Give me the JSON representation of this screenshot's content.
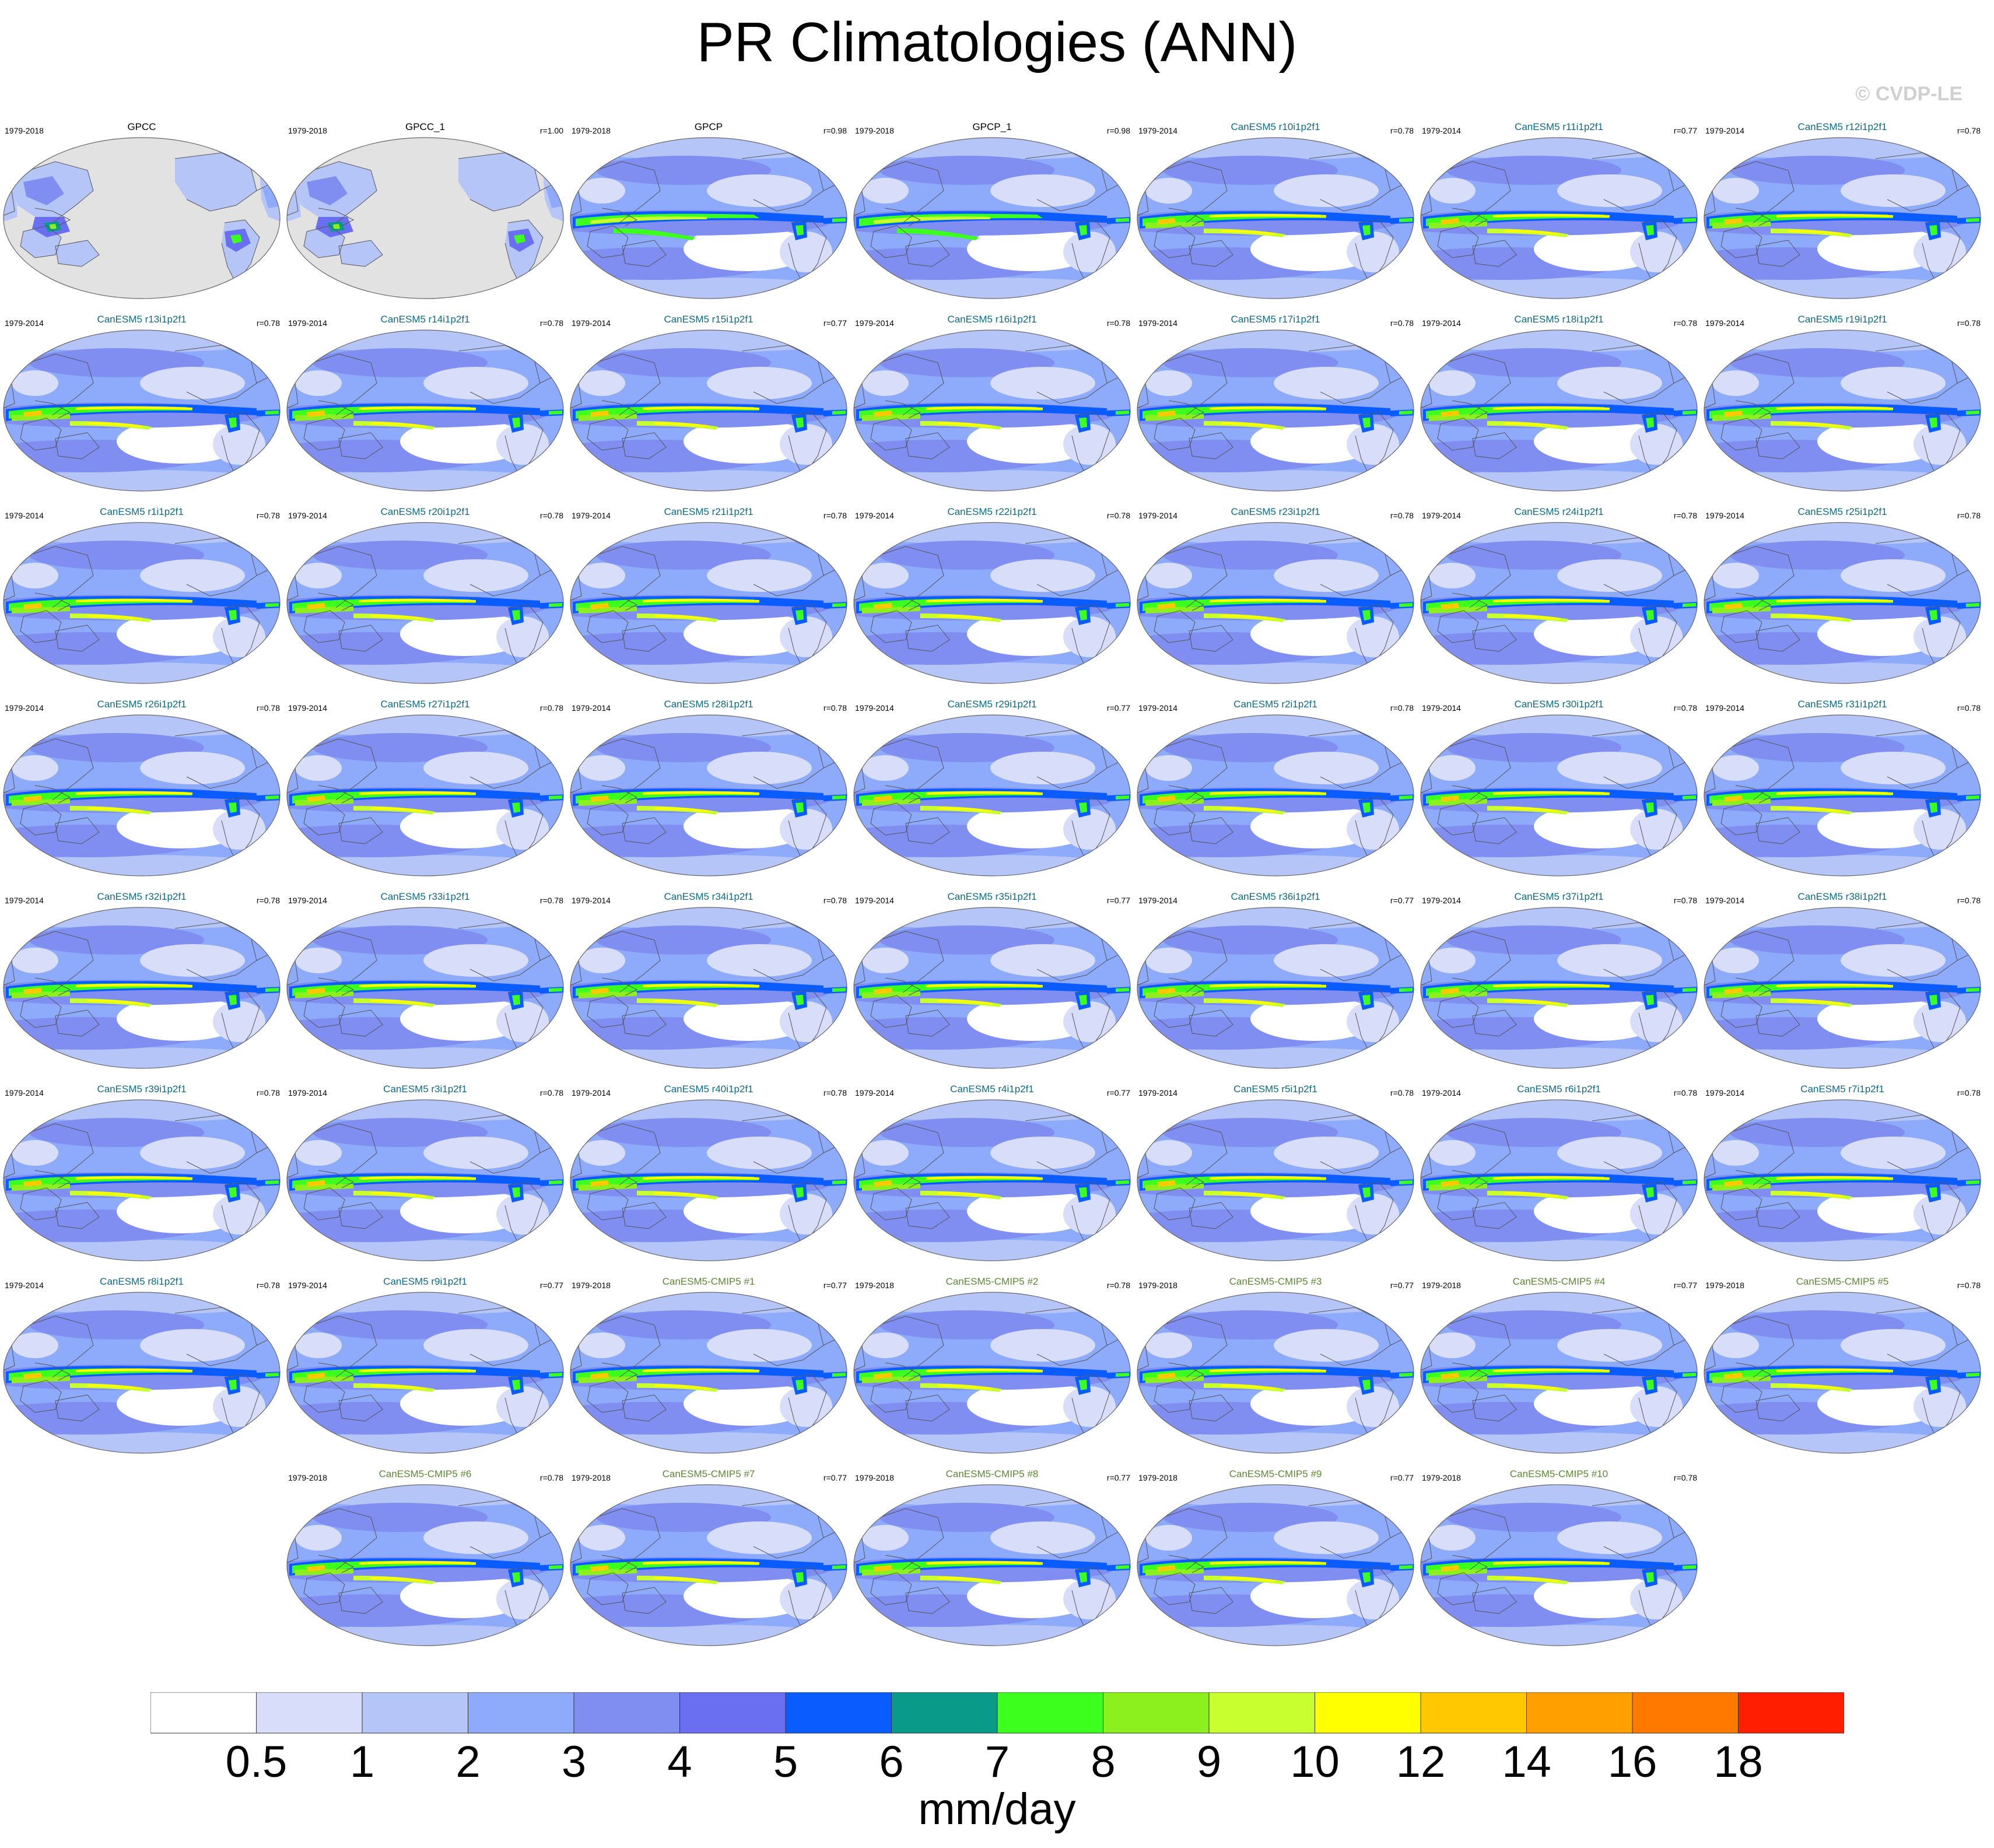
{
  "title": "PR Climatologies (ANN)",
  "watermark": "© CVDP-LE",
  "colors": {
    "obs_name": "#000000",
    "member_name": "#0b6a8a",
    "cmip5_name": "#5a8a2e",
    "land_obs": "#e2e2e2"
  },
  "chart_data": {
    "type": "heatmap",
    "projection": "robinson (Pacific-centered)",
    "variable": "PR",
    "season": "ANN",
    "units": "mm/day",
    "colorbar": {
      "levels": [
        "0.5",
        "1",
        "2",
        "3",
        "4",
        "5",
        "6",
        "7",
        "8",
        "9",
        "10",
        "12",
        "14",
        "16",
        "18"
      ],
      "colors": [
        "#ffffff",
        "#d8defa",
        "#b6c5f7",
        "#8eaafb",
        "#7f8ef0",
        "#6a6ef0",
        "#0a5cff",
        "#0a9a8a",
        "#3cff1e",
        "#8cf01e",
        "#c8ff2e",
        "#ffff00",
        "#ffc800",
        "#ffa000",
        "#ff7800",
        "#ff1e00"
      ]
    },
    "panels": [
      {
        "name": "GPCC",
        "period": "1979-2018",
        "corr": "",
        "kind": "obs"
      },
      {
        "name": "GPCC_1",
        "period": "1979-2018",
        "corr": "r=1.00",
        "kind": "obs"
      },
      {
        "name": "GPCP",
        "period": "1979-2018",
        "corr": "r=0.98",
        "kind": "obs_global"
      },
      {
        "name": "GPCP_1",
        "period": "1979-2018",
        "corr": "r=0.98",
        "kind": "obs_global"
      },
      {
        "name": "CanESM5 r10i1p2f1",
        "period": "1979-2014",
        "corr": "r=0.78",
        "kind": "member"
      },
      {
        "name": "CanESM5 r11i1p2f1",
        "period": "1979-2014",
        "corr": "r=0.77",
        "kind": "member"
      },
      {
        "name": "CanESM5 r12i1p2f1",
        "period": "1979-2014",
        "corr": "r=0.78",
        "kind": "member"
      },
      {
        "name": "CanESM5 r13i1p2f1",
        "period": "1979-2014",
        "corr": "r=0.78",
        "kind": "member"
      },
      {
        "name": "CanESM5 r14i1p2f1",
        "period": "1979-2014",
        "corr": "r=0.78",
        "kind": "member"
      },
      {
        "name": "CanESM5 r15i1p2f1",
        "period": "1979-2014",
        "corr": "r=0.77",
        "kind": "member"
      },
      {
        "name": "CanESM5 r16i1p2f1",
        "period": "1979-2014",
        "corr": "r=0.78",
        "kind": "member"
      },
      {
        "name": "CanESM5 r17i1p2f1",
        "period": "1979-2014",
        "corr": "r=0.78",
        "kind": "member"
      },
      {
        "name": "CanESM5 r18i1p2f1",
        "period": "1979-2014",
        "corr": "r=0.78",
        "kind": "member"
      },
      {
        "name": "CanESM5 r19i1p2f1",
        "period": "1979-2014",
        "corr": "r=0.78",
        "kind": "member"
      },
      {
        "name": "CanESM5 r1i1p2f1",
        "period": "1979-2014",
        "corr": "r=0.78",
        "kind": "member"
      },
      {
        "name": "CanESM5 r20i1p2f1",
        "period": "1979-2014",
        "corr": "r=0.78",
        "kind": "member"
      },
      {
        "name": "CanESM5 r21i1p2f1",
        "period": "1979-2014",
        "corr": "r=0.78",
        "kind": "member"
      },
      {
        "name": "CanESM5 r22i1p2f1",
        "period": "1979-2014",
        "corr": "r=0.78",
        "kind": "member"
      },
      {
        "name": "CanESM5 r23i1p2f1",
        "period": "1979-2014",
        "corr": "r=0.78",
        "kind": "member"
      },
      {
        "name": "CanESM5 r24i1p2f1",
        "period": "1979-2014",
        "corr": "r=0.78",
        "kind": "member"
      },
      {
        "name": "CanESM5 r25i1p2f1",
        "period": "1979-2014",
        "corr": "r=0.78",
        "kind": "member"
      },
      {
        "name": "CanESM5 r26i1p2f1",
        "period": "1979-2014",
        "corr": "r=0.78",
        "kind": "member"
      },
      {
        "name": "CanESM5 r27i1p2f1",
        "period": "1979-2014",
        "corr": "r=0.78",
        "kind": "member"
      },
      {
        "name": "CanESM5 r28i1p2f1",
        "period": "1979-2014",
        "corr": "r=0.78",
        "kind": "member"
      },
      {
        "name": "CanESM5 r29i1p2f1",
        "period": "1979-2014",
        "corr": "r=0.77",
        "kind": "member"
      },
      {
        "name": "CanESM5 r2i1p2f1",
        "period": "1979-2014",
        "corr": "r=0.78",
        "kind": "member"
      },
      {
        "name": "CanESM5 r30i1p2f1",
        "period": "1979-2014",
        "corr": "r=0.78",
        "kind": "member"
      },
      {
        "name": "CanESM5 r31i1p2f1",
        "period": "1979-2014",
        "corr": "r=0.78",
        "kind": "member"
      },
      {
        "name": "CanESM5 r32i1p2f1",
        "period": "1979-2014",
        "corr": "r=0.78",
        "kind": "member"
      },
      {
        "name": "CanESM5 r33i1p2f1",
        "period": "1979-2014",
        "corr": "r=0.78",
        "kind": "member"
      },
      {
        "name": "CanESM5 r34i1p2f1",
        "period": "1979-2014",
        "corr": "r=0.78",
        "kind": "member"
      },
      {
        "name": "CanESM5 r35i1p2f1",
        "period": "1979-2014",
        "corr": "r=0.77",
        "kind": "member"
      },
      {
        "name": "CanESM5 r36i1p2f1",
        "period": "1979-2014",
        "corr": "r=0.77",
        "kind": "member"
      },
      {
        "name": "CanESM5 r37i1p2f1",
        "period": "1979-2014",
        "corr": "r=0.78",
        "kind": "member"
      },
      {
        "name": "CanESM5 r38i1p2f1",
        "period": "1979-2014",
        "corr": "r=0.78",
        "kind": "member"
      },
      {
        "name": "CanESM5 r39i1p2f1",
        "period": "1979-2014",
        "corr": "r=0.78",
        "kind": "member"
      },
      {
        "name": "CanESM5 r3i1p2f1",
        "period": "1979-2014",
        "corr": "r=0.78",
        "kind": "member"
      },
      {
        "name": "CanESM5 r40i1p2f1",
        "period": "1979-2014",
        "corr": "r=0.78",
        "kind": "member"
      },
      {
        "name": "CanESM5 r4i1p2f1",
        "period": "1979-2014",
        "corr": "r=0.77",
        "kind": "member"
      },
      {
        "name": "CanESM5 r5i1p2f1",
        "period": "1979-2014",
        "corr": "r=0.78",
        "kind": "member"
      },
      {
        "name": "CanESM5 r6i1p2f1",
        "period": "1979-2014",
        "corr": "r=0.78",
        "kind": "member"
      },
      {
        "name": "CanESM5 r7i1p2f1",
        "period": "1979-2014",
        "corr": "r=0.78",
        "kind": "member"
      },
      {
        "name": "CanESM5 r8i1p2f1",
        "period": "1979-2014",
        "corr": "r=0.78",
        "kind": "member"
      },
      {
        "name": "CanESM5 r9i1p2f1",
        "period": "1979-2014",
        "corr": "r=0.77",
        "kind": "member"
      },
      {
        "name": "CanESM5-CMIP5 #1",
        "period": "1979-2018",
        "corr": "r=0.77",
        "kind": "cmip5"
      },
      {
        "name": "CanESM5-CMIP5 #2",
        "period": "1979-2018",
        "corr": "r=0.78",
        "kind": "cmip5"
      },
      {
        "name": "CanESM5-CMIP5 #3",
        "period": "1979-2018",
        "corr": "r=0.77",
        "kind": "cmip5"
      },
      {
        "name": "CanESM5-CMIP5 #4",
        "period": "1979-2018",
        "corr": "r=0.77",
        "kind": "cmip5"
      },
      {
        "name": "CanESM5-CMIP5 #5",
        "period": "1979-2018",
        "corr": "r=0.78",
        "kind": "cmip5"
      },
      {
        "name": "CanESM5-CMIP5 #6",
        "period": "1979-2018",
        "corr": "r=0.78",
        "kind": "cmip5"
      },
      {
        "name": "CanESM5-CMIP5 #7",
        "period": "1979-2018",
        "corr": "r=0.77",
        "kind": "cmip5"
      },
      {
        "name": "CanESM5-CMIP5 #8",
        "period": "1979-2018",
        "corr": "r=0.77",
        "kind": "cmip5"
      },
      {
        "name": "CanESM5-CMIP5 #9",
        "period": "1979-2018",
        "corr": "r=0.77",
        "kind": "cmip5"
      },
      {
        "name": "CanESM5-CMIP5 #10",
        "period": "1979-2018",
        "corr": "r=0.78",
        "kind": "cmip5"
      }
    ]
  }
}
